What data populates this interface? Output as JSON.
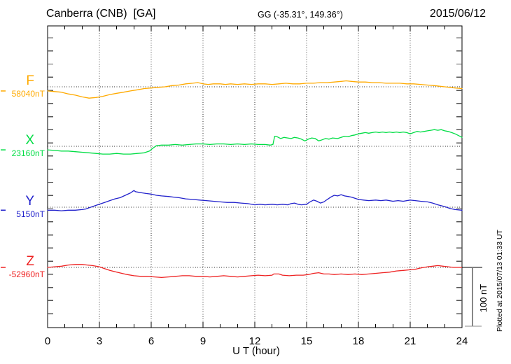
{
  "header": {
    "station": "Canberra (CNB)  [GA]",
    "coords": "GG (-35.31°, 149.36°)",
    "date": "2015/06/12"
  },
  "footer": {
    "plotted_at": "Plotted at 2015/07/13 01:33 UT"
  },
  "chart_data": {
    "type": "line",
    "title": "Canberra (CNB) [GA] magnetogram 2015/06/12",
    "xlabel": "U T (hour)",
    "ylabel": "",
    "x_range": [
      0,
      24
    ],
    "x_ticks": [
      0,
      3,
      6,
      9,
      12,
      15,
      18,
      21,
      24
    ],
    "grid": "dotted vertical lines every 3 h; dotted horizontal line at each trace baseline",
    "legend_position": "left of each trace",
    "scale_bar": {
      "label": "100 nT",
      "nT": 100
    },
    "colors": {
      "F": "#FFAA00",
      "X": "#00DD44",
      "Y": "#2222CC",
      "Z": "#EE2222",
      "frame": "#000000",
      "grid": "#333333",
      "bar": "#888888"
    },
    "traces": [
      {
        "label": "F",
        "baseline_label": "58040nT",
        "baseline_nT": 58040,
        "color": "#FFAA00",
        "points": [
          [
            0,
            -7
          ],
          [
            0.4,
            -8
          ],
          [
            0.8,
            -9
          ],
          [
            1.2,
            -12
          ],
          [
            1.6,
            -14
          ],
          [
            2,
            -17
          ],
          [
            2.4,
            -19
          ],
          [
            2.8,
            -18
          ],
          [
            3.2,
            -16
          ],
          [
            3.6,
            -13
          ],
          [
            4,
            -11
          ],
          [
            4.4,
            -9
          ],
          [
            4.8,
            -7
          ],
          [
            5.2,
            -5
          ],
          [
            5.6,
            -3
          ],
          [
            6,
            -2
          ],
          [
            6.4,
            -1
          ],
          [
            6.8,
            0
          ],
          [
            7.2,
            2
          ],
          [
            7.6,
            3
          ],
          [
            8,
            5
          ],
          [
            8.4,
            6
          ],
          [
            8.7,
            7
          ],
          [
            9,
            5
          ],
          [
            9.3,
            4
          ],
          [
            9.6,
            5
          ],
          [
            10,
            5
          ],
          [
            10.3,
            4
          ],
          [
            10.6,
            5
          ],
          [
            11,
            4
          ],
          [
            11.4,
            5
          ],
          [
            11.8,
            4
          ],
          [
            12.2,
            5
          ],
          [
            12.6,
            5
          ],
          [
            13,
            4
          ],
          [
            13.4,
            5
          ],
          [
            13.8,
            6
          ],
          [
            14.2,
            5
          ],
          [
            14.6,
            5
          ],
          [
            15,
            6
          ],
          [
            15.4,
            6
          ],
          [
            15.8,
            7
          ],
          [
            16.2,
            7
          ],
          [
            16.6,
            8
          ],
          [
            17,
            9
          ],
          [
            17.3,
            10
          ],
          [
            17.6,
            9
          ],
          [
            18,
            8
          ],
          [
            18.4,
            8
          ],
          [
            18.8,
            7
          ],
          [
            19.2,
            7
          ],
          [
            19.6,
            6
          ],
          [
            20,
            6
          ],
          [
            20.4,
            6
          ],
          [
            20.8,
            5
          ],
          [
            21.2,
            5
          ],
          [
            21.6,
            4
          ],
          [
            22,
            3
          ],
          [
            22.4,
            2
          ],
          [
            22.7,
            1
          ],
          [
            23,
            0
          ],
          [
            23.3,
            -1
          ],
          [
            23.6,
            -2
          ],
          [
            24,
            -3
          ]
        ]
      },
      {
        "label": "X",
        "baseline_label": "23160nT",
        "baseline_nT": 23160,
        "color": "#00DD44",
        "points": [
          [
            0,
            -6
          ],
          [
            0.4,
            -7
          ],
          [
            0.8,
            -8
          ],
          [
            1.2,
            -8
          ],
          [
            1.6,
            -9
          ],
          [
            2,
            -10
          ],
          [
            2.4,
            -11
          ],
          [
            2.8,
            -12
          ],
          [
            3.2,
            -13
          ],
          [
            3.6,
            -13
          ],
          [
            4,
            -12
          ],
          [
            4.4,
            -13
          ],
          [
            4.8,
            -13
          ],
          [
            5.2,
            -12
          ],
          [
            5.6,
            -11
          ],
          [
            5.9,
            -8
          ],
          [
            6.1,
            -3
          ],
          [
            6.3,
            1
          ],
          [
            6.6,
            2
          ],
          [
            7,
            2
          ],
          [
            7.4,
            3
          ],
          [
            7.8,
            2
          ],
          [
            8.2,
            3
          ],
          [
            8.6,
            4
          ],
          [
            9,
            4
          ],
          [
            9.4,
            3
          ],
          [
            9.8,
            4
          ],
          [
            10.2,
            4
          ],
          [
            10.6,
            3
          ],
          [
            11,
            4
          ],
          [
            11.4,
            3
          ],
          [
            11.8,
            4
          ],
          [
            12.2,
            3
          ],
          [
            12.6,
            3
          ],
          [
            12.9,
            2
          ],
          [
            13.05,
            3
          ],
          [
            13.15,
            17
          ],
          [
            13.3,
            16
          ],
          [
            13.5,
            13
          ],
          [
            13.7,
            15
          ],
          [
            13.9,
            14
          ],
          [
            14.1,
            13
          ],
          [
            14.3,
            15
          ],
          [
            14.5,
            14
          ],
          [
            14.7,
            12
          ],
          [
            14.9,
            9
          ],
          [
            15.1,
            12
          ],
          [
            15.3,
            14
          ],
          [
            15.5,
            13
          ],
          [
            15.7,
            9
          ],
          [
            15.9,
            11
          ],
          [
            16.1,
            13
          ],
          [
            16.3,
            12
          ],
          [
            16.5,
            14
          ],
          [
            16.8,
            13
          ],
          [
            17,
            15
          ],
          [
            17.2,
            17
          ],
          [
            17.4,
            16
          ],
          [
            17.6,
            18
          ],
          [
            17.8,
            19
          ],
          [
            18,
            21
          ],
          [
            18.2,
            22
          ],
          [
            18.4,
            23
          ],
          [
            18.6,
            22
          ],
          [
            18.8,
            23
          ],
          [
            19,
            24
          ],
          [
            19.2,
            23
          ],
          [
            19.4,
            24
          ],
          [
            19.6,
            23
          ],
          [
            19.8,
            24
          ],
          [
            20,
            23
          ],
          [
            20.2,
            24
          ],
          [
            20.4,
            23
          ],
          [
            20.6,
            24
          ],
          [
            20.8,
            23
          ],
          [
            21,
            21
          ],
          [
            21.2,
            23
          ],
          [
            21.4,
            25
          ],
          [
            21.6,
            24
          ],
          [
            21.8,
            25
          ],
          [
            22,
            26
          ],
          [
            22.2,
            27
          ],
          [
            22.4,
            28
          ],
          [
            22.6,
            27
          ],
          [
            22.8,
            28
          ],
          [
            23,
            26
          ],
          [
            23.2,
            25
          ],
          [
            23.4,
            23
          ],
          [
            23.6,
            21
          ],
          [
            23.8,
            18
          ],
          [
            24,
            15
          ]
        ]
      },
      {
        "label": "Y",
        "baseline_label": "5150nT",
        "baseline_nT": 5150,
        "color": "#2222CC",
        "points": [
          [
            0,
            -5
          ],
          [
            0.4,
            -5
          ],
          [
            0.8,
            -6
          ],
          [
            1.2,
            -5
          ],
          [
            1.6,
            -5
          ],
          [
            2,
            -4
          ],
          [
            2.2,
            -3
          ],
          [
            2.5,
            0
          ],
          [
            2.8,
            3
          ],
          [
            3,
            5
          ],
          [
            3.3,
            8
          ],
          [
            3.6,
            11
          ],
          [
            3.9,
            14
          ],
          [
            4.2,
            16
          ],
          [
            4.5,
            20
          ],
          [
            4.8,
            24
          ],
          [
            5,
            28
          ],
          [
            5.1,
            26
          ],
          [
            5.3,
            25
          ],
          [
            5.5,
            24
          ],
          [
            5.7,
            23
          ],
          [
            6,
            22
          ],
          [
            6.3,
            20
          ],
          [
            6.6,
            19
          ],
          [
            7,
            18
          ],
          [
            7.3,
            17
          ],
          [
            7.6,
            16
          ],
          [
            8,
            14
          ],
          [
            8.4,
            13
          ],
          [
            8.8,
            12
          ],
          [
            9.2,
            11
          ],
          [
            9.6,
            10
          ],
          [
            10,
            9
          ],
          [
            10.4,
            8
          ],
          [
            10.8,
            8
          ],
          [
            11.2,
            7
          ],
          [
            11.6,
            6
          ],
          [
            12,
            4
          ],
          [
            12.3,
            5
          ],
          [
            12.6,
            4
          ],
          [
            13,
            5
          ],
          [
            13.3,
            4
          ],
          [
            13.6,
            5
          ],
          [
            13.9,
            4
          ],
          [
            14.1,
            6
          ],
          [
            14.3,
            7
          ],
          [
            14.5,
            5
          ],
          [
            14.7,
            4
          ],
          [
            15,
            5
          ],
          [
            15.2,
            9
          ],
          [
            15.4,
            12
          ],
          [
            15.6,
            10
          ],
          [
            15.8,
            7
          ],
          [
            16,
            9
          ],
          [
            16.2,
            13
          ],
          [
            16.4,
            17
          ],
          [
            16.6,
            20
          ],
          [
            16.8,
            19
          ],
          [
            17,
            21
          ],
          [
            17.2,
            19
          ],
          [
            17.4,
            18
          ],
          [
            17.6,
            17
          ],
          [
            17.8,
            15
          ],
          [
            18,
            13
          ],
          [
            18.3,
            12
          ],
          [
            18.6,
            11
          ],
          [
            19,
            12
          ],
          [
            19.3,
            11
          ],
          [
            19.6,
            12
          ],
          [
            20,
            10
          ],
          [
            20.3,
            11
          ],
          [
            20.6,
            10
          ],
          [
            21,
            12
          ],
          [
            21.3,
            11
          ],
          [
            21.6,
            10
          ],
          [
            22,
            9
          ],
          [
            22.3,
            7
          ],
          [
            22.6,
            4
          ],
          [
            23,
            1
          ],
          [
            23.3,
            -2
          ],
          [
            23.6,
            -4
          ],
          [
            24,
            -5
          ]
        ]
      },
      {
        "label": "Z",
        "baseline_label": "-52960nT",
        "baseline_nT": -52960,
        "color": "#EE2222",
        "points": [
          [
            0,
            0
          ],
          [
            0.4,
            1
          ],
          [
            0.8,
            2
          ],
          [
            1.2,
            4
          ],
          [
            1.6,
            5
          ],
          [
            2,
            5
          ],
          [
            2.3,
            4
          ],
          [
            2.6,
            3
          ],
          [
            3,
            1
          ],
          [
            3.3,
            -2
          ],
          [
            3.6,
            -5
          ],
          [
            4,
            -8
          ],
          [
            4.3,
            -10
          ],
          [
            4.6,
            -12
          ],
          [
            5,
            -14
          ],
          [
            5.4,
            -15
          ],
          [
            5.8,
            -15
          ],
          [
            6.2,
            -16
          ],
          [
            6.6,
            -17
          ],
          [
            7,
            -16
          ],
          [
            7.4,
            -15
          ],
          [
            7.8,
            -14
          ],
          [
            8.2,
            -14
          ],
          [
            8.6,
            -15
          ],
          [
            9,
            -15
          ],
          [
            9.4,
            -16
          ],
          [
            9.8,
            -15
          ],
          [
            10.2,
            -14
          ],
          [
            10.6,
            -15
          ],
          [
            11,
            -16
          ],
          [
            11.4,
            -15
          ],
          [
            11.8,
            -14
          ],
          [
            12.2,
            -13
          ],
          [
            12.6,
            -14
          ],
          [
            13,
            -13
          ],
          [
            13.1,
            -11
          ],
          [
            13.4,
            -11
          ],
          [
            13.6,
            -13
          ],
          [
            14,
            -14
          ],
          [
            14.4,
            -13
          ],
          [
            14.8,
            -13
          ],
          [
            15.1,
            -12
          ],
          [
            15.4,
            -10
          ],
          [
            15.7,
            -9
          ],
          [
            16,
            -11
          ],
          [
            16.3,
            -11
          ],
          [
            16.6,
            -12
          ],
          [
            17,
            -11
          ],
          [
            17.4,
            -12
          ],
          [
            17.8,
            -11
          ],
          [
            18.2,
            -12
          ],
          [
            18.6,
            -11
          ],
          [
            19,
            -10
          ],
          [
            19.4,
            -9
          ],
          [
            19.8,
            -8
          ],
          [
            20.2,
            -6
          ],
          [
            20.6,
            -5
          ],
          [
            21,
            -4
          ],
          [
            21.3,
            -3
          ],
          [
            21.6,
            -1
          ],
          [
            22,
            1
          ],
          [
            22.3,
            2
          ],
          [
            22.6,
            3
          ],
          [
            22.9,
            2
          ],
          [
            23.2,
            1
          ],
          [
            23.5,
            0
          ],
          [
            24,
            0
          ]
        ]
      }
    ]
  }
}
